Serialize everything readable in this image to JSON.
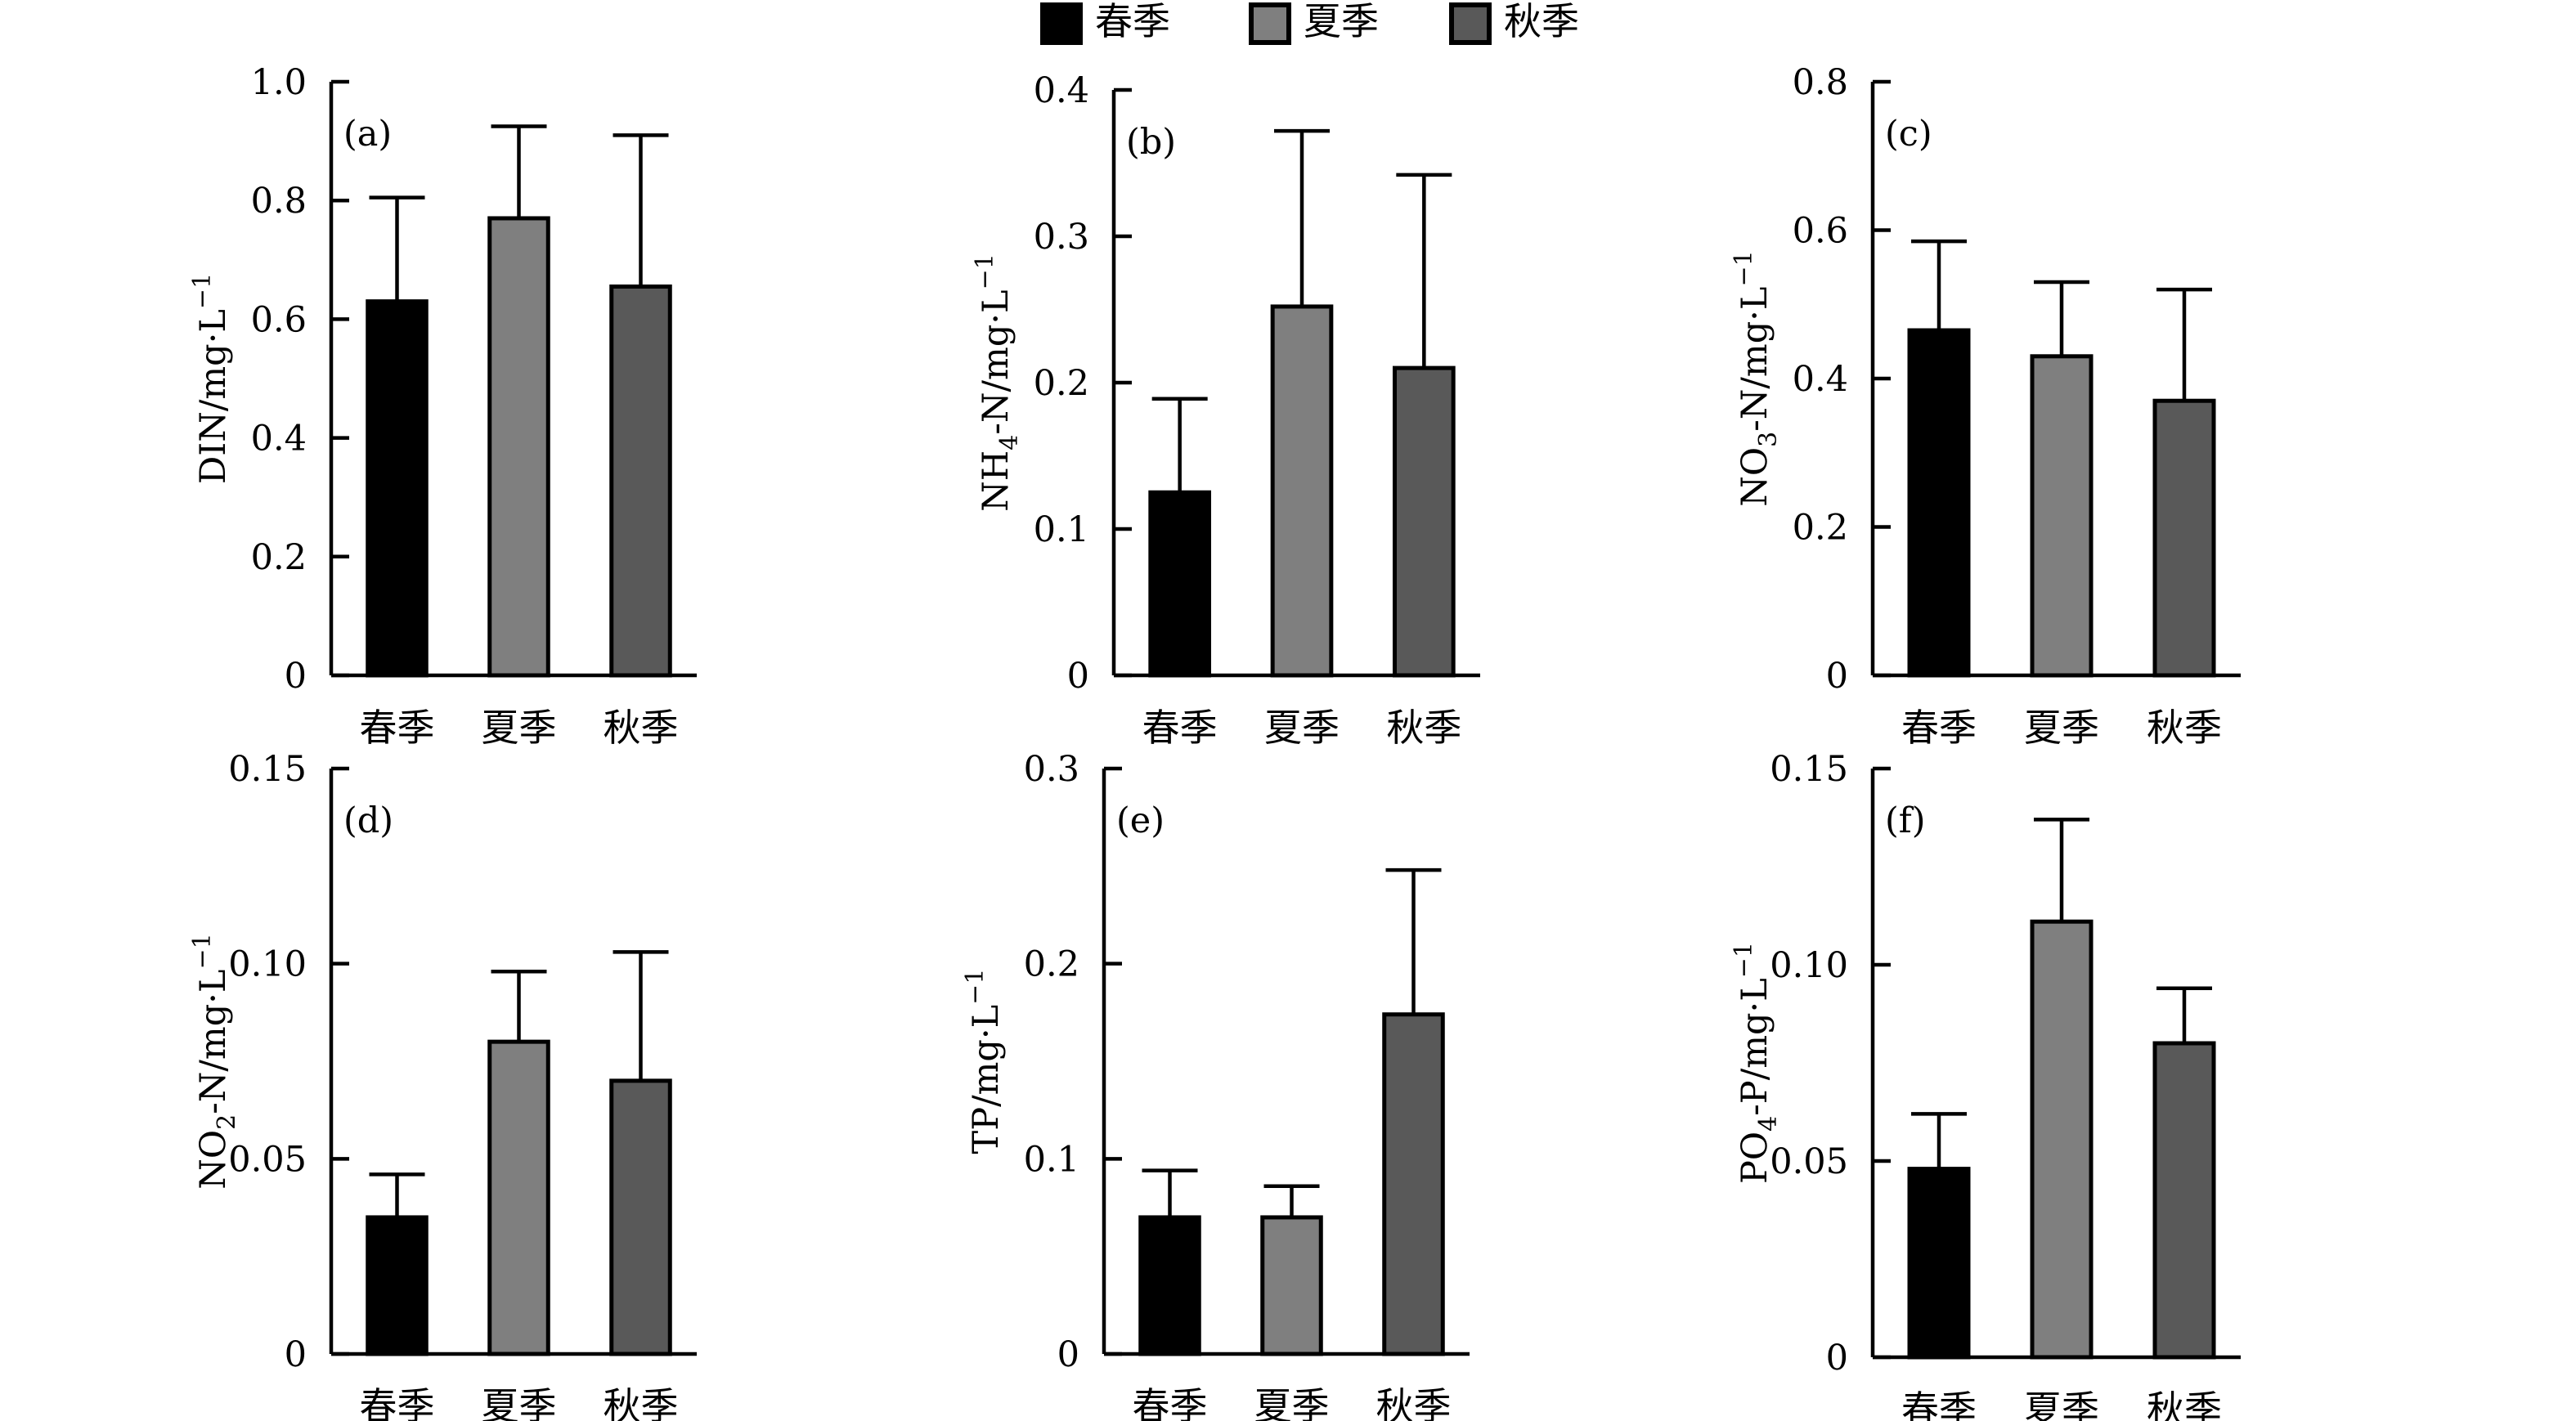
{
  "legend": {
    "items": [
      {
        "label": "春季",
        "color": "#000000"
      },
      {
        "label": "夏季",
        "color": "#7f7f7f"
      },
      {
        "label": "秋季",
        "color": "#595959"
      }
    ],
    "placement": "top-center"
  },
  "chart_data": [
    {
      "type": "bar",
      "panel_label": "(a)",
      "ylabel": "DIN/mg·L",
      "ylabel_sup": "−1",
      "ylabel_sub": "",
      "ylim": [
        0,
        1.0
      ],
      "yticks": [
        "0",
        "0.2",
        "0.4",
        "0.6",
        "0.8",
        "1.0"
      ],
      "ytick_values": [
        0,
        0.2,
        0.4,
        0.6,
        0.8,
        1.0
      ],
      "categories": [
        "春季",
        "夏季",
        "秋季"
      ],
      "values": [
        0.63,
        0.77,
        0.655
      ],
      "errors": [
        0.175,
        0.155,
        0.255
      ]
    },
    {
      "type": "bar",
      "panel_label": "(b)",
      "ylabel": "NH-N/mg·L",
      "ylabel_parts": [
        "NH",
        "4",
        "-N/mg·L"
      ],
      "ylabel_sup": "−1",
      "ylim": [
        0,
        0.4
      ],
      "yticks": [
        "0",
        "0.1",
        "0.2",
        "0.3",
        "0.4"
      ],
      "ytick_values": [
        0,
        0.1,
        0.2,
        0.3,
        0.4
      ],
      "categories": [
        "春季",
        "夏季",
        "秋季"
      ],
      "values": [
        0.125,
        0.252,
        0.21
      ],
      "errors": [
        0.064,
        0.12,
        0.132
      ]
    },
    {
      "type": "bar",
      "panel_label": "(c)",
      "ylabel": "NO-N/mg·L",
      "ylabel_parts": [
        "NO",
        "3",
        "-N/mg·L"
      ],
      "ylabel_sup": "−1",
      "ylim": [
        0,
        0.8
      ],
      "yticks": [
        "0",
        "0.2",
        "0.4",
        "0.6",
        "0.8"
      ],
      "ytick_values": [
        0,
        0.2,
        0.4,
        0.6,
        0.8
      ],
      "categories": [
        "春季",
        "夏季",
        "秋季"
      ],
      "values": [
        0.465,
        0.43,
        0.37
      ],
      "errors": [
        0.12,
        0.1,
        0.15
      ]
    },
    {
      "type": "bar",
      "panel_label": "(d)",
      "ylabel": "NO-N/mg·L",
      "ylabel_parts": [
        "NO",
        "2",
        "-N/mg·L"
      ],
      "ylabel_sup": "−1",
      "ylim": [
        0,
        0.15
      ],
      "yticks": [
        "0",
        "0.05",
        "0.10",
        "0.15"
      ],
      "ytick_values": [
        0,
        0.05,
        0.1,
        0.15
      ],
      "categories": [
        "春季",
        "夏季",
        "秋季"
      ],
      "values": [
        0.035,
        0.08,
        0.07
      ],
      "errors": [
        0.011,
        0.018,
        0.033
      ]
    },
    {
      "type": "bar",
      "panel_label": "(e)",
      "ylabel": "TP/mg·L",
      "ylabel_parts": [
        "TP/mg·L",
        "",
        ""
      ],
      "ylabel_sup": "−1",
      "ylim": [
        0,
        0.3
      ],
      "yticks": [
        "0",
        "0.1",
        "0.2",
        "0.3"
      ],
      "ytick_values": [
        0,
        0.1,
        0.2,
        0.3
      ],
      "categories": [
        "春季",
        "夏季",
        "秋季"
      ],
      "values": [
        0.07,
        0.07,
        0.174
      ],
      "errors": [
        0.024,
        0.016,
        0.074
      ]
    },
    {
      "type": "bar",
      "panel_label": "(f)",
      "ylabel": "PO-P/mg·L",
      "ylabel_parts": [
        "PO",
        "4",
        "-P/mg·L"
      ],
      "ylabel_sup": "−1",
      "ylim": [
        0,
        0.15
      ],
      "yticks": [
        "0",
        "0.05",
        "0.10",
        "0.15"
      ],
      "ytick_values": [
        0,
        0.05,
        0.1,
        0.15
      ],
      "categories": [
        "春季",
        "夏季",
        "秋季"
      ],
      "values": [
        0.048,
        0.111,
        0.08
      ],
      "errors": [
        0.014,
        0.026,
        0.014
      ]
    }
  ]
}
